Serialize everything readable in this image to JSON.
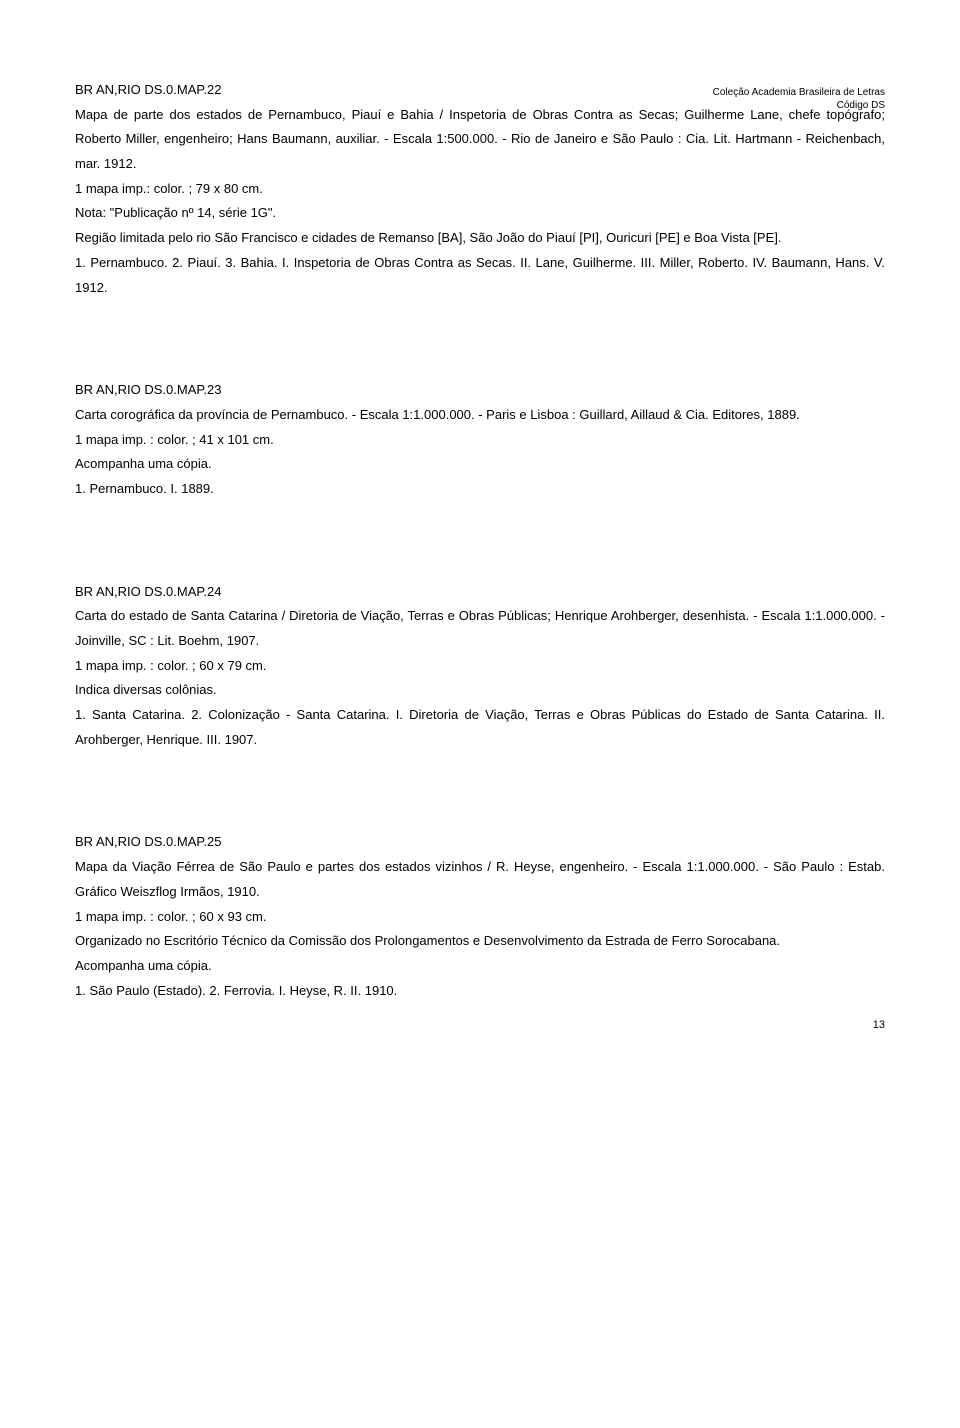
{
  "header": {
    "line1": "Coleção Academia Brasileira de Letras",
    "line2": "Código DS"
  },
  "page_number": "13",
  "entries": [
    {
      "ref": "BR AN,RIO DS.0.MAP.22",
      "lines": [
        "Mapa de parte dos estados de Pernambuco, Piauí e Bahia / Inspetoria de Obras Contra as Secas; Guilherme Lane, chefe topógrafo; Roberto Miller, engenheiro; Hans Baumann, auxiliar. - Escala 1:500.000. - Rio de Janeiro e São Paulo : Cia. Lit. Hartmann - Reichenbach, mar. 1912.",
        "1 mapa imp.: color. ; 79 x 80 cm.",
        "Nota: \"Publicação nº 14, série 1G\".",
        "Região limitada pelo rio São Francisco e cidades de Remanso [BA], São João do Piauí [PI], Ouricuri [PE] e  Boa Vista [PE].",
        "1. Pernambuco.  2. Piauí.  3. Bahia.  I. Inspetoria de Obras Contra as Secas.  II. Lane, Guilherme.  III. Miller, Roberto.  IV. Baumann, Hans.  V. 1912."
      ]
    },
    {
      "ref": "BR AN,RIO DS.0.MAP.23",
      "lines": [
        "Carta corográfica da província de Pernambuco. - Escala 1:1.000.000. - Paris e Lisboa : Guillard, Aillaud & Cia. Editores, 1889.",
        "1 mapa imp. : color. ; 41 x 101 cm.",
        "Acompanha uma cópia.",
        "1. Pernambuco.  I. 1889."
      ]
    },
    {
      "ref": "BR AN,RIO DS.0.MAP.24",
      "lines": [
        "Carta do estado de Santa Catarina / Diretoria de Viação, Terras e Obras Públicas; Henrique Arohberger, desenhista. - Escala 1:1.000.000. - Joinville, SC : Lit. Boehm, 1907.",
        "1 mapa imp. : color. ; 60 x 79 cm.",
        "Indica diversas colônias.",
        "1. Santa Catarina.  2. Colonização - Santa Catarina.  I. Diretoria de Viação, Terras e Obras Públicas do Estado de Santa Catarina.  II. Arohberger, Henrique. III.  1907."
      ]
    },
    {
      "ref": "BR AN,RIO DS.0.MAP.25",
      "lines": [
        "Mapa da Viação Férrea de São Paulo e partes dos estados vizinhos / R. Heyse, engenheiro. - Escala 1:1.000.000. - São Paulo : Estab. Gráfico Weiszflog Irmãos, 1910.",
        "1 mapa imp. : color. ; 60 x 93 cm.",
        "Organizado no Escritório Técnico da Comissão dos Prolongamentos e Desenvolvimento da Estrada de Ferro Sorocabana.",
        "Acompanha uma cópia.",
        "1. São Paulo (Estado).  2. Ferrovia.  I. Heyse, R. II. 1910."
      ]
    }
  ]
}
